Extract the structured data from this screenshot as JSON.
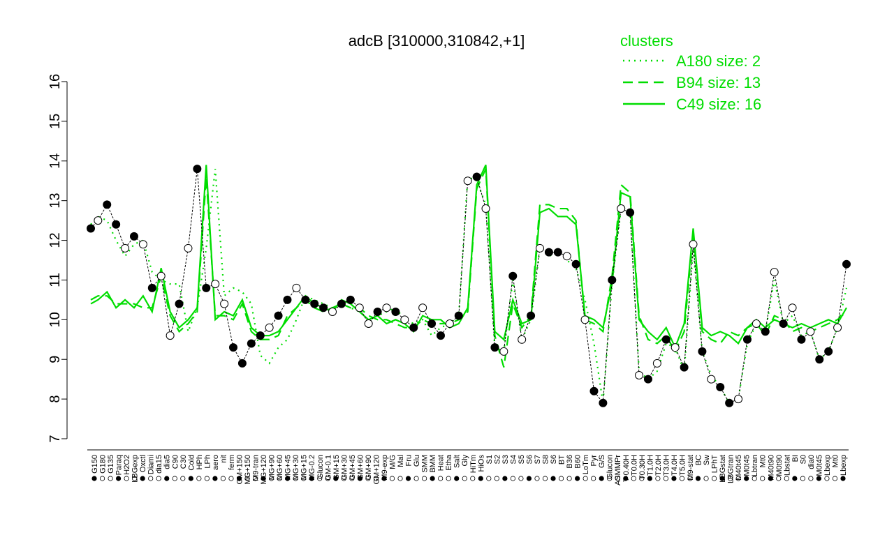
{
  "chart_data": {
    "type": "line",
    "title": "adcB [310000,310842,+1]",
    "xlabel": "",
    "ylabel": "",
    "ylim": [
      7,
      16
    ],
    "yticks": [
      7,
      8,
      9,
      10,
      11,
      12,
      13,
      14,
      15,
      16
    ],
    "grid": false,
    "legend": {
      "title": "clusters",
      "placement": "top-right",
      "entries": [
        {
          "label": "A180 size: 2",
          "style": "dotted"
        },
        {
          "label": "B94 size: 13",
          "style": "dashed"
        },
        {
          "label": "C49 size: 16",
          "style": "solid"
        }
      ]
    },
    "colors": {
      "cluster_line": "#00dd00",
      "open_point": "#ffffff",
      "filled_point": "#000000"
    },
    "x_tick_labels": [
      "G150",
      "G180",
      "G135",
      "Paraq",
      "H2O2",
      "LBGexp",
      "Oxctl",
      "Diami",
      "dia15",
      "dia5",
      "C90",
      "C30",
      "Cold",
      "HPh",
      "LPh",
      "aero",
      "nit",
      "ferm",
      "GM+150",
      "MG+150",
      "M9-tran",
      "MG+120",
      "MG+90",
      "MG+60",
      "MG+45",
      "MG+30",
      "MG+15",
      "MG-0.2",
      "Glucon",
      "GM-0.1",
      "GM+15",
      "GM+30",
      "GM+45",
      "GM+60",
      "GM+90",
      "GM+120",
      "M9-exp",
      "M/G",
      "Mal",
      "Fru",
      "Glu",
      "SMM",
      "BMM",
      "Heat",
      "Etha",
      "Salt",
      "Gly",
      "HiTm",
      "HiOs",
      "S1",
      "S2",
      "S3",
      "S4",
      "S5",
      "S6",
      "S7",
      "S8",
      "S6",
      "BT",
      "B36",
      "B60",
      "LoTm",
      "Pyr",
      "G/S",
      "Glucon",
      "ASMMPr",
      "T-0.40H",
      "T0.0H",
      "T0.30H",
      "T1.0H",
      "T2.0H",
      "T3.0H",
      "T4.0H",
      "T5.0H",
      "M9-stat",
      "BC",
      "Sw",
      "LPhT",
      "LBGstat",
      "LBGtran",
      "M40t45",
      "M0t45",
      "Lbtran",
      "Mt0",
      "M40t90",
      "M0t90",
      "Lbstat",
      "BI",
      "S0",
      "dia0",
      "M0t45",
      "Lbexp",
      "Mt0",
      "Lbexp"
    ],
    "series": [
      {
        "style": "solid",
        "x": [
          1,
          5,
          10,
          15,
          20,
          25,
          30,
          35,
          40,
          45,
          50,
          55,
          60,
          65,
          70,
          75,
          80,
          85,
          90,
          95,
          100,
          105,
          110,
          115,
          120,
          125,
          130,
          135,
          140,
          145,
          150,
          155,
          160,
          165,
          170,
          175,
          180,
          185,
          190,
          195,
          200,
          205,
          210,
          215,
          220,
          225,
          230,
          235,
          240,
          245,
          250,
          255,
          260,
          265,
          270,
          275,
          280,
          285,
          290,
          295,
          300,
          305,
          310,
          315,
          320,
          325,
          330,
          335,
          340,
          345,
          350,
          355,
          360,
          365,
          370,
          375,
          380,
          385,
          390,
          395,
          400,
          405,
          410,
          415,
          420
        ],
        "values": [
          10.4,
          10.5,
          10.7,
          10.3,
          10.5,
          10.3,
          10.6,
          10.2,
          11.3,
          10.2,
          9.8,
          10.0,
          10.3,
          13.9,
          10.0,
          10.2,
          10.1,
          10.5,
          9.8,
          9.6,
          9.6,
          9.7,
          10.0,
          10.3,
          10.6,
          10.4,
          10.3,
          10.2,
          10.5,
          10.4,
          10.2,
          10.0,
          10.1,
          9.9,
          10.0,
          9.9,
          9.7,
          10.1,
          10.0,
          10.0,
          9.8,
          9.9,
          10.3,
          13.4,
          13.9,
          9.7,
          9.5,
          10.5,
          9.9,
          10.0,
          12.7,
          12.8,
          12.6,
          12.6,
          12.4,
          10.1,
          10.0,
          9.8,
          10.9,
          13.2,
          13.1,
          10.0,
          9.7,
          9.5,
          9.8,
          9.3,
          9.9,
          12.3,
          9.8,
          9.6,
          9.7,
          9.6,
          9.4,
          9.8,
          10.0,
          9.8,
          10.0,
          9.9,
          9.8,
          9.9,
          9.8,
          9.9,
          10.0,
          9.9,
          10.3
        ]
      },
      {
        "style": "dashed",
        "x": [
          1,
          5,
          10,
          15,
          20,
          25,
          30,
          35,
          40,
          45,
          50,
          55,
          60,
          65,
          70,
          75,
          80,
          85,
          90,
          95,
          100,
          105,
          110,
          115,
          120,
          125,
          130,
          135,
          140,
          145,
          150,
          155,
          160,
          165,
          170,
          175,
          180,
          185,
          190,
          195,
          200,
          205,
          210,
          215,
          220,
          225,
          230,
          235,
          240,
          245,
          250,
          255,
          260,
          265,
          270,
          275,
          280,
          285,
          290,
          295,
          300,
          305,
          310,
          315,
          320,
          325,
          330,
          335,
          340,
          345,
          350,
          355,
          360,
          365,
          370,
          375,
          380,
          385,
          390,
          395,
          400,
          405,
          410,
          415,
          420
        ],
        "values": [
          10.5,
          10.6,
          10.6,
          10.4,
          10.4,
          10.4,
          10.3,
          10.3,
          11.1,
          10.1,
          9.7,
          9.9,
          10.2,
          13.6,
          10.1,
          10.1,
          10.0,
          10.4,
          9.7,
          9.5,
          9.5,
          9.6,
          10.1,
          10.3,
          10.5,
          10.3,
          10.2,
          10.3,
          10.4,
          10.3,
          10.3,
          10.1,
          10.0,
          10.0,
          9.9,
          9.8,
          9.8,
          10.0,
          9.9,
          9.9,
          9.9,
          10.0,
          10.2,
          13.3,
          13.8,
          9.6,
          8.8,
          10.4,
          9.8,
          10.1,
          12.9,
          12.9,
          12.8,
          12.8,
          12.5,
          10.0,
          9.9,
          9.7,
          11.1,
          13.4,
          13.2,
          10.1,
          9.5,
          9.4,
          9.6,
          9.2,
          9.7,
          12.2,
          9.7,
          9.5,
          9.4,
          9.7,
          9.6,
          9.8,
          9.9,
          9.6,
          10.1,
          10.0,
          9.7,
          9.8,
          9.7,
          9.8,
          9.9,
          10.0,
          10.2
        ]
      },
      {
        "style": "dotted",
        "x": [
          1,
          5,
          10,
          15,
          20,
          25,
          30,
          35,
          40,
          45,
          50,
          55,
          60,
          65,
          70,
          75,
          80,
          85,
          90,
          95,
          100,
          105,
          110,
          115,
          120,
          125,
          130,
          135,
          140,
          145,
          150,
          155,
          160,
          165,
          170,
          175,
          180,
          185,
          190,
          195,
          200,
          205,
          210,
          215,
          220,
          225,
          230,
          235,
          240,
          245,
          250,
          255,
          260,
          265,
          270,
          275,
          280,
          285,
          290,
          295,
          300,
          305,
          310,
          315,
          320,
          325,
          330,
          335,
          340,
          345,
          350,
          355,
          360,
          365,
          370,
          375,
          380,
          385,
          390,
          395,
          400,
          405,
          410,
          415,
          420
        ],
        "values": [
          12.4,
          12.6,
          12.5,
          12.0,
          11.6,
          11.9,
          12.0,
          11.2,
          11.0,
          10.9,
          10.9,
          9.7,
          10.3,
          11.8,
          13.8,
          10.6,
          10.8,
          10.7,
          10.4,
          9.1,
          8.9,
          9.3,
          9.5,
          10.0,
          10.6,
          10.5,
          10.4,
          10.3,
          10.4,
          10.3,
          10.2,
          10.0,
          10.1,
          10.2,
          10.3,
          10.0,
          9.9,
          10.0,
          9.6,
          9.8,
          9.9,
          10.1,
          13.6,
          13.5,
          12.9,
          9.3,
          9.2,
          11.0,
          9.5,
          10.0,
          11.8,
          11.6,
          11.7,
          11.5,
          11.3,
          10.5,
          9.4,
          7.9,
          10.9,
          12.8,
          12.7,
          8.7,
          8.5,
          8.7,
          9.4,
          9.3,
          8.7,
          11.8,
          9.2,
          8.6,
          8.3,
          7.9,
          8.0,
          9.4,
          9.9,
          9.7,
          11.0,
          9.9,
          10.1,
          9.6,
          9.7,
          9.0,
          9.2,
          9.8,
          10.8
        ]
      }
    ],
    "points": {
      "x": [
        1,
        5,
        10,
        15,
        20,
        25,
        30,
        35,
        40,
        45,
        50,
        55,
        60,
        65,
        70,
        75,
        80,
        85,
        90,
        95,
        100,
        105,
        110,
        115,
        120,
        125,
        130,
        135,
        140,
        145,
        150,
        155,
        160,
        165,
        170,
        175,
        180,
        185,
        190,
        195,
        200,
        205,
        210,
        215,
        220,
        225,
        230,
        235,
        240,
        245,
        250,
        255,
        260,
        265,
        270,
        275,
        280,
        285,
        290,
        295,
        300,
        305,
        310,
        315,
        320,
        325,
        330,
        335,
        340,
        345,
        350,
        355,
        360,
        365,
        370,
        375,
        380,
        385,
        390,
        395,
        400,
        405,
        410,
        415,
        420
      ],
      "values": [
        12.3,
        12.5,
        12.9,
        12.4,
        11.8,
        12.1,
        11.9,
        10.8,
        11.1,
        9.6,
        10.4,
        11.8,
        13.8,
        10.8,
        10.9,
        10.4,
        9.3,
        8.9,
        9.4,
        9.6,
        9.8,
        10.1,
        10.5,
        10.8,
        10.5,
        10.4,
        10.3,
        10.2,
        10.4,
        10.5,
        10.3,
        9.9,
        10.2,
        10.3,
        10.2,
        10.0,
        9.8,
        10.3,
        9.9,
        9.6,
        9.9,
        10.1,
        13.5,
        13.6,
        12.8,
        9.3,
        9.2,
        11.1,
        9.5,
        10.1,
        11.8,
        11.7,
        11.7,
        11.6,
        11.4,
        10.0,
        8.2,
        7.9,
        11.0,
        12.8,
        12.7,
        8.6,
        8.5,
        8.9,
        9.5,
        9.3,
        8.8,
        11.9,
        9.2,
        8.5,
        8.3,
        7.9,
        8.0,
        9.5,
        9.9,
        9.7,
        11.2,
        9.9,
        10.3,
        9.5,
        9.7,
        9.0,
        9.2,
        9.8,
        11.4
      ],
      "filled": [
        1,
        0,
        1,
        1,
        0,
        1,
        0,
        1,
        0,
        0,
        1,
        0,
        1,
        1,
        0,
        0,
        1,
        1,
        1,
        1,
        0,
        1,
        1,
        0,
        1,
        1,
        1,
        0,
        1,
        1,
        0,
        0,
        1,
        0,
        1,
        0,
        1,
        0,
        1,
        1,
        0,
        1,
        0,
        1,
        0,
        1,
        0,
        1,
        0,
        1,
        0,
        1,
        1,
        0,
        1,
        0,
        1,
        1,
        1,
        0,
        1,
        0,
        1,
        0,
        1,
        0,
        1,
        0,
        1,
        0,
        1,
        1,
        0,
        1,
        0,
        1,
        0,
        1,
        0,
        1,
        0,
        1,
        1,
        0,
        1
      ]
    }
  }
}
